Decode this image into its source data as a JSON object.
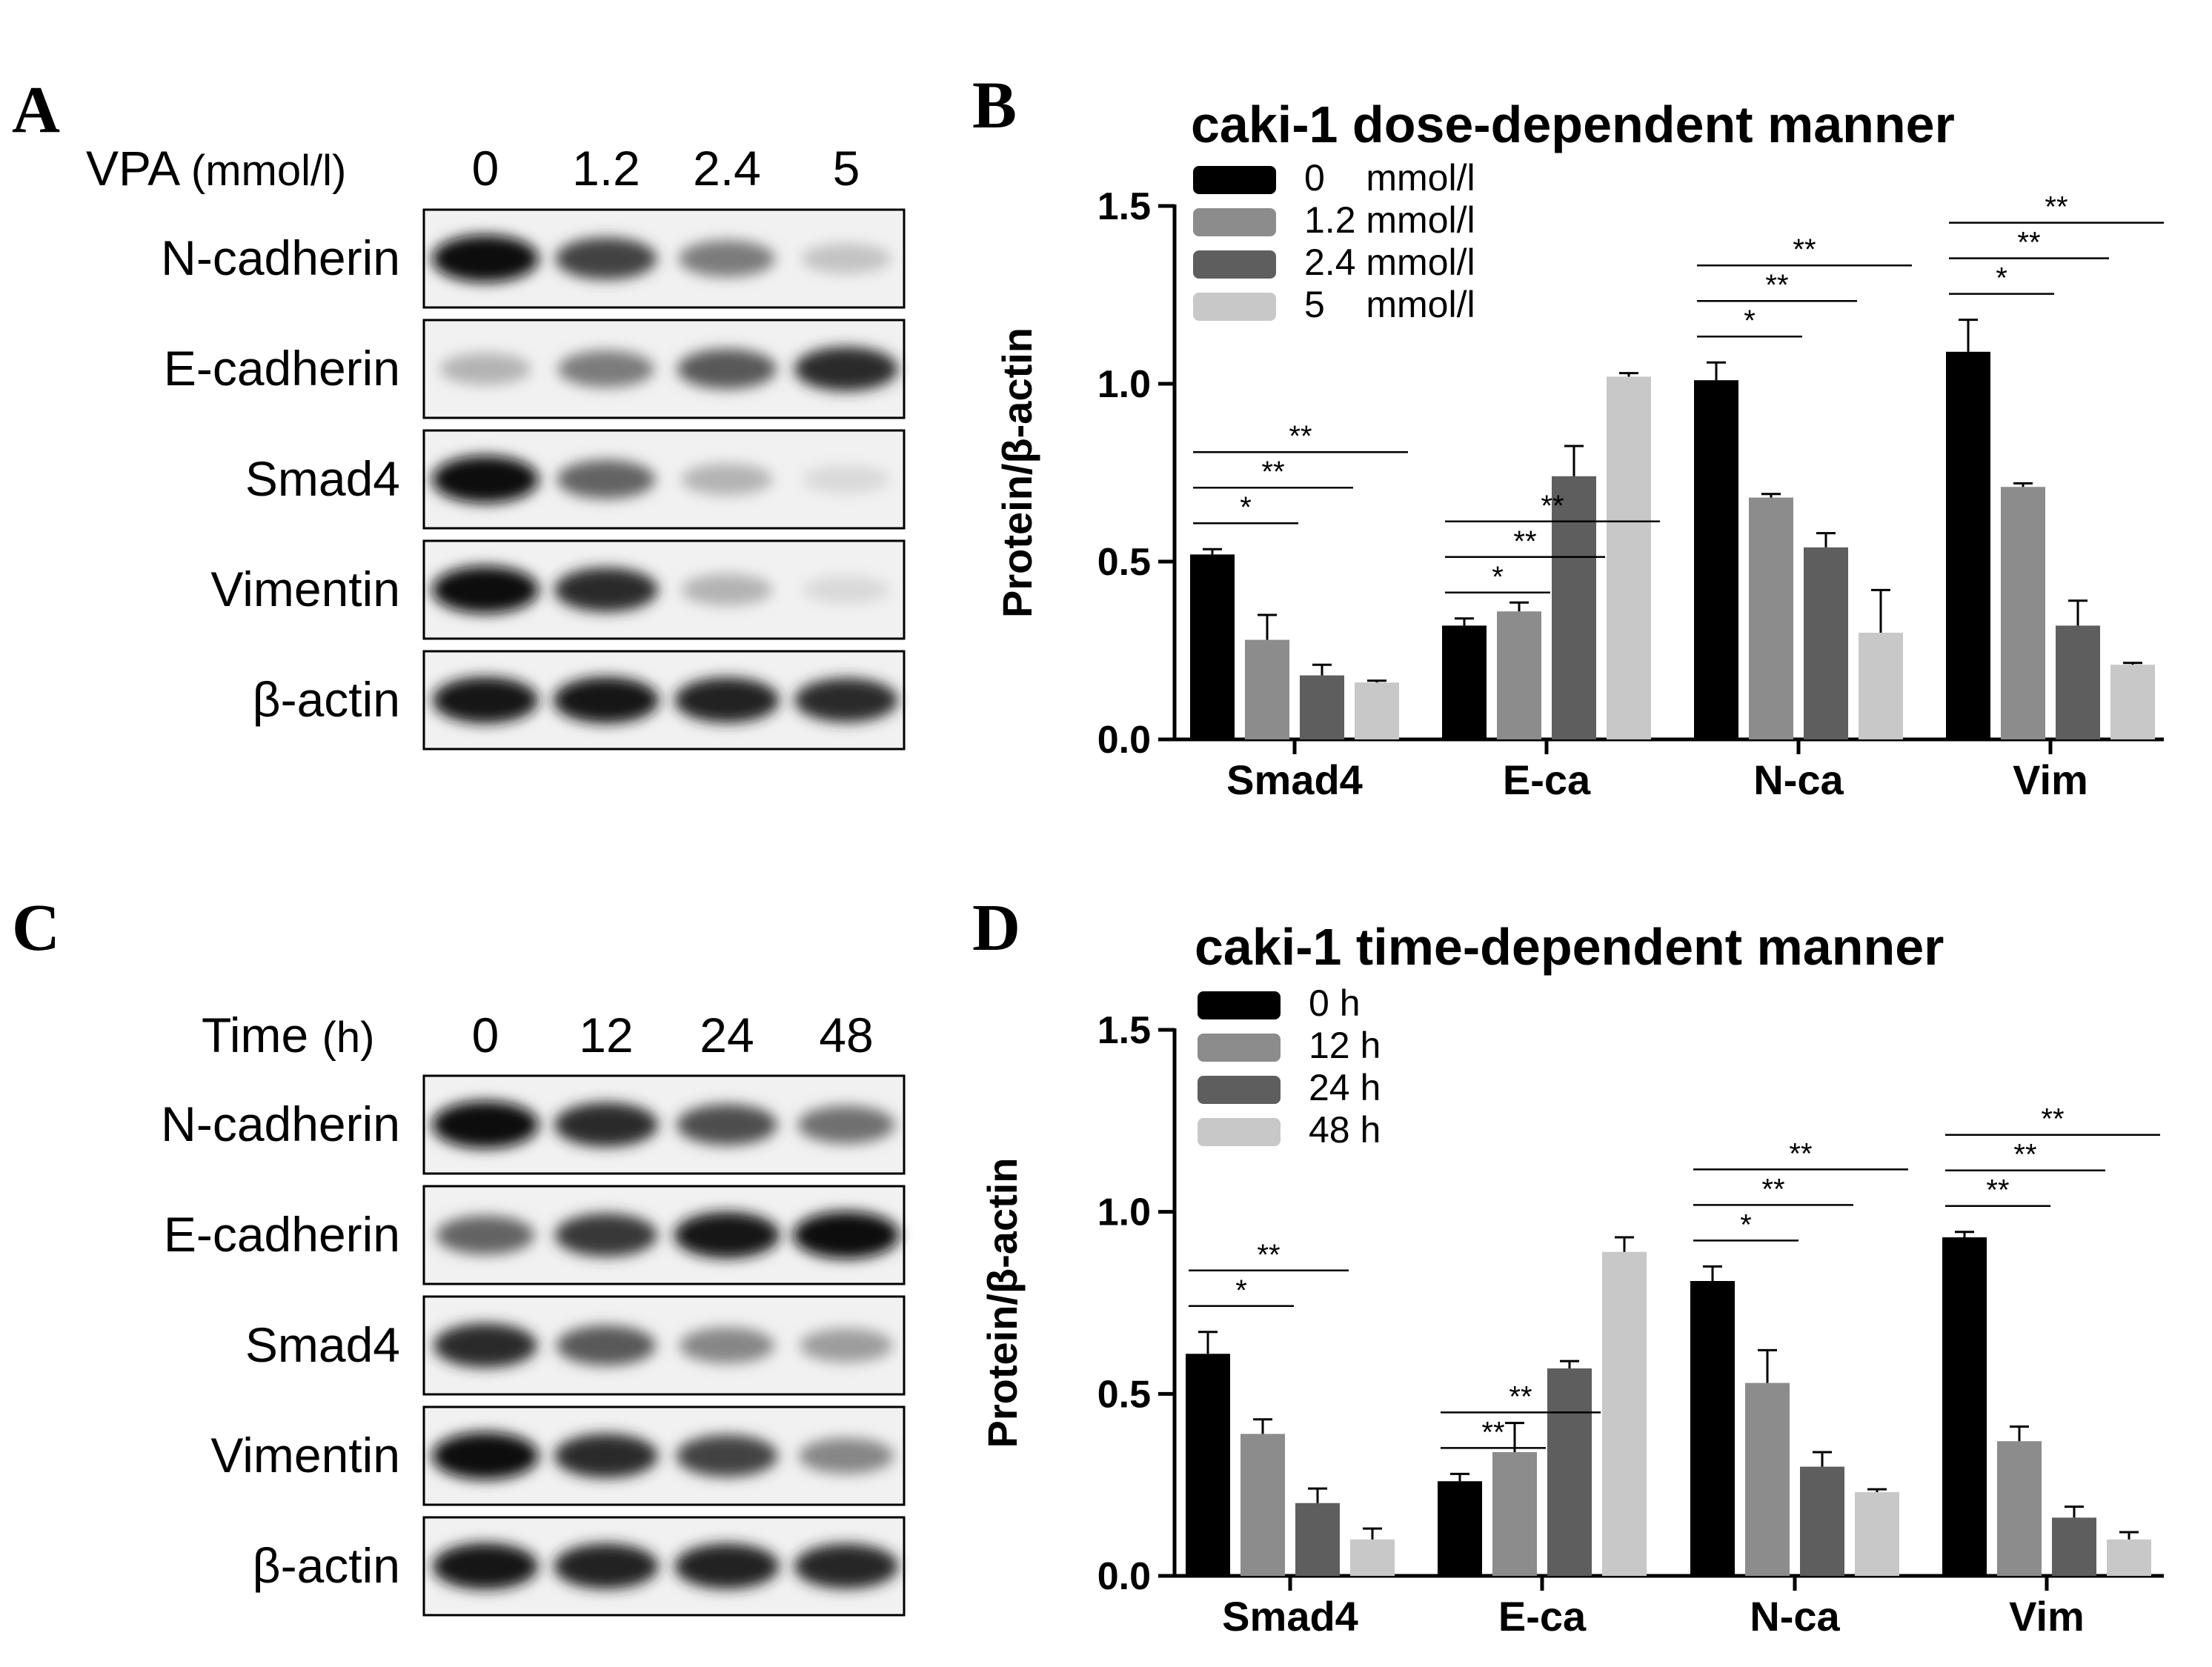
{
  "panels": {
    "A": {
      "letter": "A",
      "header_label": "VPA",
      "header_unit": "(mmol/l)",
      "lanes": [
        "0",
        "1.2",
        "2.4",
        "5"
      ],
      "proteins": [
        "N-cadherin",
        "E-cadherin",
        "Smad4",
        "Vimentin",
        "β-actin"
      ],
      "band_intensity": [
        [
          1.0,
          0.75,
          0.5,
          0.18
        ],
        [
          0.25,
          0.5,
          0.65,
          0.85
        ],
        [
          1.0,
          0.6,
          0.25,
          0.08
        ],
        [
          1.0,
          0.85,
          0.25,
          0.08
        ],
        [
          0.95,
          0.95,
          0.9,
          0.85
        ]
      ]
    },
    "C": {
      "letter": "C",
      "header_label": "Time",
      "header_unit": "(h)",
      "lanes": [
        "0",
        "12",
        "24",
        "48"
      ],
      "proteins": [
        "N-cadherin",
        "E-cadherin",
        "Smad4",
        "Vimentin",
        "β-actin"
      ],
      "band_intensity": [
        [
          1.0,
          0.85,
          0.7,
          0.55
        ],
        [
          0.6,
          0.8,
          0.95,
          1.0
        ],
        [
          0.85,
          0.65,
          0.45,
          0.35
        ],
        [
          1.0,
          0.85,
          0.75,
          0.45
        ],
        [
          0.95,
          0.9,
          0.9,
          0.88
        ]
      ]
    },
    "B": {
      "letter": "B"
    },
    "D": {
      "letter": "D"
    }
  },
  "chart_data": [
    {
      "type": "bar",
      "panel": "B",
      "title": "caki-1 dose-dependent manner",
      "xlabel": "",
      "ylabel": "Protein/β-actin",
      "ylim": [
        0,
        1.5
      ],
      "yticks": [
        "0.0",
        "0.5",
        "1.0",
        "1.5"
      ],
      "legend_position": "top-left",
      "categories": [
        "Smad4",
        "E-ca",
        "N-ca",
        "Vim"
      ],
      "series": [
        {
          "name": "0    mmol/l",
          "color": "#000000",
          "values": [
            0.52,
            0.32,
            1.01,
            1.09
          ],
          "errors": [
            0.015,
            0.02,
            0.05,
            0.09
          ]
        },
        {
          "name": "1.2 mmol/l",
          "color": "#8c8c8c",
          "values": [
            0.28,
            0.36,
            0.68,
            0.71
          ],
          "errors": [
            0.07,
            0.025,
            0.01,
            0.01
          ]
        },
        {
          "name": "2.4 mmol/l",
          "color": "#5e5e5e",
          "values": [
            0.18,
            0.74,
            0.54,
            0.32
          ],
          "errors": [
            0.03,
            0.085,
            0.04,
            0.07
          ]
        },
        {
          "name": "5    mmol/l",
          "color": "#c8c8c8",
          "values": [
            0.16,
            1.02,
            0.3,
            0.21
          ],
          "errors": [
            0.005,
            0.01,
            0.12,
            0.005
          ]
        }
      ],
      "significance": [
        {
          "category": 0,
          "brackets": [
            [
              "*",
              2
            ],
            [
              "**",
              3
            ],
            [
              "**",
              4
            ]
          ]
        },
        {
          "category": 1,
          "brackets": [
            [
              "*",
              2
            ],
            [
              "**",
              3
            ],
            [
              "**",
              4
            ]
          ]
        },
        {
          "category": 2,
          "brackets": [
            [
              "*",
              2
            ],
            [
              "**",
              3
            ],
            [
              "**",
              4
            ]
          ]
        },
        {
          "category": 3,
          "brackets": [
            [
              "*",
              2
            ],
            [
              "**",
              3
            ],
            [
              "**",
              4
            ]
          ]
        }
      ]
    },
    {
      "type": "bar",
      "panel": "D",
      "title": "caki-1 time-dependent manner",
      "xlabel": "",
      "ylabel": "Protein/β-actin",
      "ylim": [
        0,
        1.5
      ],
      "yticks": [
        "0.0",
        "0.5",
        "1.0",
        "1.5"
      ],
      "legend_position": "top-left",
      "categories": [
        "Smad4",
        "E-ca",
        "N-ca",
        "Vim"
      ],
      "series": [
        {
          "name": "0 h",
          "color": "#000000",
          "values": [
            0.61,
            0.26,
            0.81,
            0.93
          ],
          "errors": [
            0.06,
            0.02,
            0.04,
            0.015
          ]
        },
        {
          "name": "12 h",
          "color": "#8c8c8c",
          "values": [
            0.39,
            0.34,
            0.53,
            0.37
          ],
          "errors": [
            0.04,
            0.08,
            0.09,
            0.04
          ]
        },
        {
          "name": "24 h",
          "color": "#5e5e5e",
          "values": [
            0.2,
            0.57,
            0.3,
            0.16
          ],
          "errors": [
            0.04,
            0.02,
            0.04,
            0.03
          ]
        },
        {
          "name": "48 h",
          "color": "#c8c8c8",
          "values": [
            0.1,
            0.89,
            0.23,
            0.1
          ],
          "errors": [
            0.03,
            0.04,
            0.008,
            0.02
          ]
        }
      ],
      "significance": [
        {
          "category": 0,
          "brackets": [
            [
              "*",
              2
            ],
            [
              "**",
              3
            ]
          ]
        },
        {
          "category": 1,
          "brackets": [
            [
              "**",
              2
            ],
            [
              "**",
              3
            ]
          ]
        },
        {
          "category": 2,
          "brackets": [
            [
              "*",
              2
            ],
            [
              "**",
              3
            ],
            [
              "**",
              4
            ]
          ]
        },
        {
          "category": 3,
          "brackets": [
            [
              "**",
              2
            ],
            [
              "**",
              3
            ],
            [
              "**",
              4
            ]
          ]
        }
      ]
    }
  ]
}
